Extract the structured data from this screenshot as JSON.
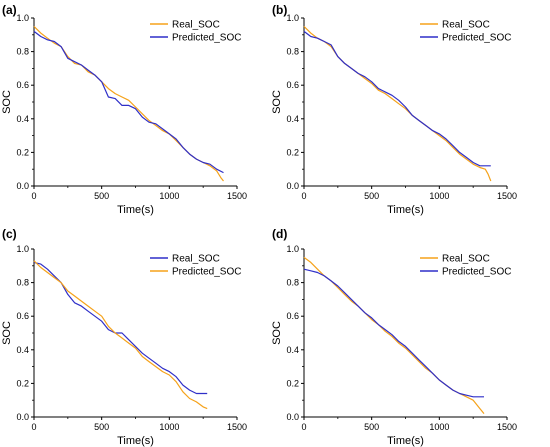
{
  "colors": {
    "real": "#f5a21a",
    "predicted": "#2f2fc8",
    "axis": "#000000"
  },
  "chart_data": [
    {
      "type": "line",
      "panel_label": "(a)",
      "xlabel": "Time(s)",
      "ylabel": "SOC",
      "xlim": [
        0,
        1500
      ],
      "ylim": [
        0.0,
        1.0
      ],
      "x_ticks": [
        0,
        500,
        1000,
        1500
      ],
      "y_ticks": [
        0.0,
        0.2,
        0.4,
        0.6,
        0.8,
        1.0
      ],
      "legend_position": "top-right",
      "legend_order": [
        "Real_SOC",
        "Predicted_SOC"
      ],
      "series": [
        {
          "name": "Real_SOC",
          "color_key": "real",
          "x": [
            0,
            50,
            100,
            150,
            200,
            250,
            300,
            350,
            400,
            450,
            500,
            550,
            600,
            650,
            700,
            750,
            800,
            850,
            900,
            950,
            1000,
            1050,
            1100,
            1150,
            1200,
            1250,
            1300,
            1350,
            1380,
            1400
          ],
          "y": [
            0.95,
            0.91,
            0.88,
            0.85,
            0.83,
            0.77,
            0.73,
            0.72,
            0.68,
            0.66,
            0.62,
            0.58,
            0.55,
            0.53,
            0.51,
            0.47,
            0.43,
            0.39,
            0.36,
            0.33,
            0.31,
            0.27,
            0.23,
            0.19,
            0.16,
            0.14,
            0.12,
            0.09,
            0.05,
            0.03
          ]
        },
        {
          "name": "Predicted_SOC",
          "color_key": "predicted",
          "x": [
            0,
            50,
            100,
            150,
            200,
            250,
            300,
            350,
            400,
            450,
            500,
            550,
            600,
            650,
            700,
            750,
            800,
            850,
            900,
            950,
            1000,
            1050,
            1100,
            1150,
            1200,
            1250,
            1300,
            1350,
            1400
          ],
          "y": [
            0.92,
            0.89,
            0.87,
            0.86,
            0.83,
            0.76,
            0.74,
            0.72,
            0.69,
            0.66,
            0.62,
            0.53,
            0.52,
            0.48,
            0.48,
            0.46,
            0.41,
            0.38,
            0.37,
            0.34,
            0.31,
            0.28,
            0.23,
            0.19,
            0.16,
            0.14,
            0.13,
            0.1,
            0.08
          ]
        }
      ]
    },
    {
      "type": "line",
      "panel_label": "(b)",
      "xlabel": "Time(s)",
      "ylabel": "SOC",
      "xlim": [
        0,
        1500
      ],
      "ylim": [
        0.0,
        1.0
      ],
      "x_ticks": [
        0,
        500,
        1000,
        1500
      ],
      "y_ticks": [
        0.0,
        0.2,
        0.4,
        0.6,
        0.8,
        1.0
      ],
      "legend_position": "top-right",
      "legend_order": [
        "Real_SOC",
        "Predicted_SOC"
      ],
      "series": [
        {
          "name": "Real_SOC",
          "color_key": "real",
          "x": [
            0,
            50,
            100,
            150,
            200,
            250,
            300,
            350,
            400,
            450,
            500,
            550,
            600,
            650,
            700,
            750,
            800,
            850,
            900,
            950,
            1000,
            1050,
            1100,
            1150,
            1200,
            1250,
            1300,
            1340,
            1360,
            1380
          ],
          "y": [
            0.95,
            0.91,
            0.88,
            0.86,
            0.83,
            0.77,
            0.73,
            0.7,
            0.67,
            0.64,
            0.61,
            0.57,
            0.55,
            0.52,
            0.49,
            0.46,
            0.42,
            0.39,
            0.36,
            0.33,
            0.3,
            0.27,
            0.23,
            0.19,
            0.16,
            0.13,
            0.11,
            0.1,
            0.07,
            0.03
          ]
        },
        {
          "name": "Predicted_SOC",
          "color_key": "predicted",
          "x": [
            0,
            50,
            100,
            150,
            200,
            250,
            300,
            350,
            400,
            450,
            500,
            550,
            600,
            650,
            700,
            750,
            800,
            850,
            900,
            950,
            1000,
            1050,
            1100,
            1150,
            1200,
            1250,
            1300,
            1350,
            1380
          ],
          "y": [
            0.92,
            0.89,
            0.88,
            0.86,
            0.84,
            0.77,
            0.73,
            0.7,
            0.67,
            0.65,
            0.62,
            0.58,
            0.56,
            0.54,
            0.51,
            0.47,
            0.42,
            0.39,
            0.36,
            0.33,
            0.31,
            0.28,
            0.24,
            0.2,
            0.17,
            0.14,
            0.12,
            0.12,
            0.12
          ]
        }
      ]
    },
    {
      "type": "line",
      "panel_label": "(c)",
      "xlabel": "Time(s)",
      "ylabel": "SOC",
      "xlim": [
        0,
        1500
      ],
      "ylim": [
        0.0,
        1.0
      ],
      "x_ticks": [
        0,
        500,
        1000,
        1500
      ],
      "y_ticks": [
        0.0,
        0.2,
        0.4,
        0.6,
        0.8,
        1.0
      ],
      "legend_position": "top-right",
      "legend_order": [
        "Real_SOC",
        "Predicted_SOC"
      ],
      "series": [
        {
          "name": "Real_SOC",
          "color_key": "predicted",
          "x": [
            0,
            50,
            100,
            150,
            200,
            250,
            300,
            350,
            400,
            450,
            500,
            550,
            600,
            650,
            700,
            750,
            800,
            850,
            900,
            950,
            1000,
            1050,
            1100,
            1150,
            1200,
            1250,
            1280
          ],
          "y": [
            0.92,
            0.91,
            0.88,
            0.84,
            0.8,
            0.73,
            0.68,
            0.66,
            0.63,
            0.6,
            0.57,
            0.52,
            0.5,
            0.5,
            0.46,
            0.42,
            0.38,
            0.35,
            0.32,
            0.29,
            0.27,
            0.24,
            0.19,
            0.16,
            0.14,
            0.14,
            0.14
          ]
        },
        {
          "name": "Predicted_SOC",
          "color_key": "real",
          "x": [
            0,
            50,
            100,
            150,
            200,
            250,
            300,
            350,
            400,
            450,
            500,
            550,
            600,
            650,
            700,
            750,
            800,
            850,
            900,
            950,
            1000,
            1050,
            1100,
            1150,
            1200,
            1250,
            1280
          ],
          "y": [
            0.93,
            0.89,
            0.86,
            0.83,
            0.8,
            0.75,
            0.72,
            0.69,
            0.66,
            0.63,
            0.6,
            0.54,
            0.5,
            0.47,
            0.44,
            0.41,
            0.36,
            0.33,
            0.3,
            0.27,
            0.25,
            0.21,
            0.15,
            0.11,
            0.09,
            0.06,
            0.05
          ]
        }
      ]
    },
    {
      "type": "line",
      "panel_label": "(d)",
      "xlabel": "Time(s)",
      "ylabel": "SOC",
      "xlim": [
        0,
        1500
      ],
      "ylim": [
        0.0,
        1.0
      ],
      "x_ticks": [
        0,
        500,
        1000,
        1500
      ],
      "y_ticks": [
        0.0,
        0.2,
        0.4,
        0.6,
        0.8,
        1.0
      ],
      "legend_position": "top-right",
      "legend_order": [
        "Real_SOC",
        "Predicted_SOC"
      ],
      "series": [
        {
          "name": "Real_SOC",
          "color_key": "real",
          "x": [
            0,
            50,
            100,
            150,
            200,
            250,
            300,
            350,
            400,
            450,
            500,
            550,
            600,
            650,
            700,
            750,
            800,
            850,
            900,
            950,
            1000,
            1050,
            1100,
            1150,
            1200,
            1250,
            1300,
            1330
          ],
          "y": [
            0.95,
            0.92,
            0.88,
            0.84,
            0.81,
            0.77,
            0.73,
            0.69,
            0.66,
            0.62,
            0.58,
            0.55,
            0.51,
            0.48,
            0.44,
            0.41,
            0.37,
            0.33,
            0.29,
            0.26,
            0.22,
            0.19,
            0.16,
            0.14,
            0.12,
            0.1,
            0.05,
            0.02
          ]
        },
        {
          "name": "Predicted_SOC",
          "color_key": "predicted",
          "x": [
            0,
            50,
            100,
            150,
            200,
            250,
            300,
            350,
            400,
            450,
            500,
            550,
            600,
            650,
            700,
            750,
            800,
            850,
            900,
            950,
            1000,
            1050,
            1100,
            1150,
            1200,
            1250,
            1300,
            1330
          ],
          "y": [
            0.88,
            0.87,
            0.86,
            0.84,
            0.81,
            0.78,
            0.74,
            0.7,
            0.66,
            0.62,
            0.59,
            0.55,
            0.52,
            0.49,
            0.45,
            0.42,
            0.38,
            0.34,
            0.3,
            0.26,
            0.22,
            0.19,
            0.16,
            0.14,
            0.13,
            0.12,
            0.12,
            0.12
          ]
        }
      ]
    }
  ]
}
